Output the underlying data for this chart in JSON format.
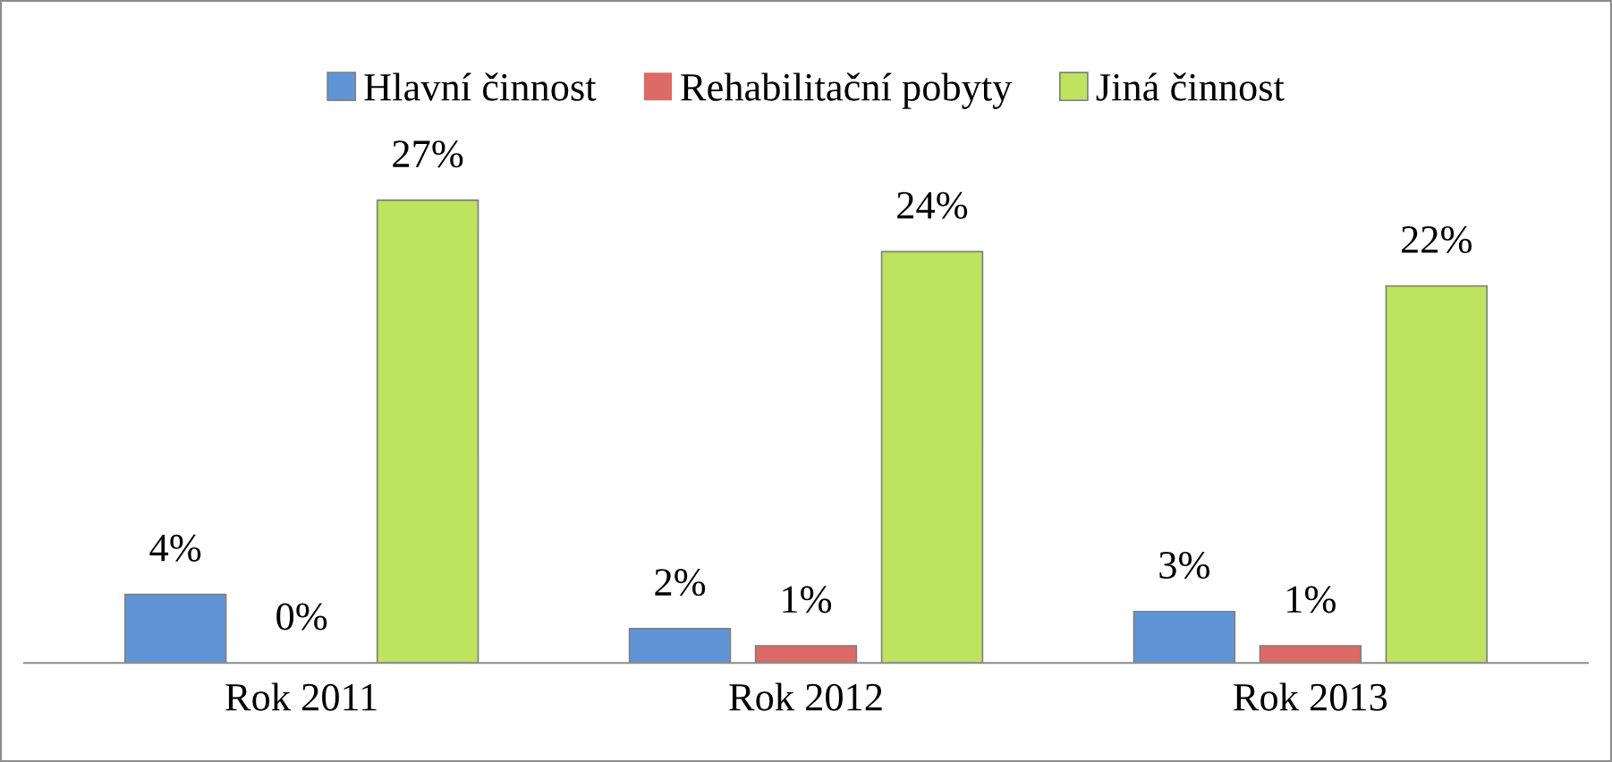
{
  "chart_data": {
    "type": "bar",
    "categories": [
      "Rok 2011",
      "Rok 2012",
      "Rok 2013"
    ],
    "series": [
      {
        "name": "Hlavní činnost",
        "color": "#5f95d6",
        "values": [
          4,
          2,
          3
        ],
        "value_labels": [
          "4%",
          "2%",
          "3%"
        ]
      },
      {
        "name": "Rehabilitační pobyty",
        "color": "#dc6a66",
        "values": [
          0,
          1,
          1
        ],
        "value_labels": [
          "0%",
          "1%",
          "1%"
        ]
      },
      {
        "name": "Jiná činnost",
        "color": "#bde35f",
        "values": [
          27,
          24,
          22
        ],
        "value_labels": [
          "27%",
          "24%",
          "22%"
        ]
      }
    ],
    "legend": "top",
    "grid": false
  }
}
